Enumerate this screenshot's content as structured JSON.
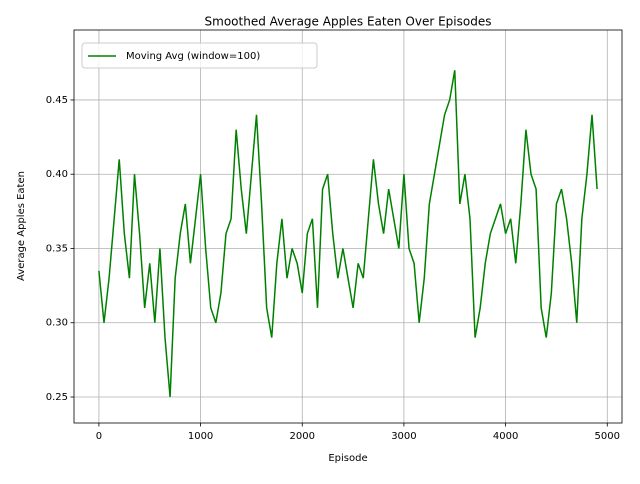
{
  "chart_data": {
    "type": "line",
    "title": "Smoothed Average Apples Eaten Over Episodes",
    "xlabel": "Episode",
    "ylabel": "Average Apples Eaten",
    "x": [
      0,
      50,
      100,
      150,
      200,
      250,
      300,
      350,
      400,
      450,
      500,
      550,
      600,
      650,
      700,
      750,
      800,
      850,
      900,
      950,
      1000,
      1050,
      1100,
      1150,
      1200,
      1250,
      1300,
      1350,
      1400,
      1450,
      1500,
      1550,
      1600,
      1650,
      1700,
      1750,
      1800,
      1850,
      1900,
      1950,
      2000,
      2050,
      2100,
      2150,
      2200,
      2250,
      2300,
      2350,
      2400,
      2450,
      2500,
      2550,
      2600,
      2650,
      2700,
      2750,
      2800,
      2850,
      2900,
      2950,
      3000,
      3050,
      3100,
      3150,
      3200,
      3250,
      3300,
      3350,
      3400,
      3450,
      3500,
      3550,
      3600,
      3650,
      3700,
      3750,
      3800,
      3850,
      3900,
      3950,
      4000,
      4050,
      4100,
      4150,
      4200,
      4250,
      4300,
      4350,
      4400,
      4450,
      4500,
      4550,
      4600,
      4650,
      4700,
      4750,
      4800,
      4850,
      4900
    ],
    "series": [
      {
        "name": "Moving Avg (window=100)",
        "color": "#008000",
        "values": [
          0.335,
          0.3,
          0.33,
          0.37,
          0.41,
          0.36,
          0.33,
          0.4,
          0.36,
          0.31,
          0.34,
          0.3,
          0.35,
          0.29,
          0.25,
          0.33,
          0.36,
          0.38,
          0.34,
          0.37,
          0.4,
          0.35,
          0.31,
          0.3,
          0.32,
          0.36,
          0.37,
          0.43,
          0.39,
          0.36,
          0.4,
          0.44,
          0.38,
          0.31,
          0.29,
          0.34,
          0.37,
          0.33,
          0.35,
          0.34,
          0.32,
          0.36,
          0.37,
          0.31,
          0.39,
          0.4,
          0.36,
          0.33,
          0.35,
          0.33,
          0.31,
          0.34,
          0.33,
          0.37,
          0.41,
          0.38,
          0.36,
          0.39,
          0.37,
          0.35,
          0.4,
          0.35,
          0.34,
          0.3,
          0.33,
          0.38,
          0.4,
          0.42,
          0.44,
          0.45,
          0.47,
          0.38,
          0.4,
          0.37,
          0.29,
          0.31,
          0.34,
          0.36,
          0.37,
          0.38,
          0.36,
          0.37,
          0.34,
          0.38,
          0.43,
          0.4,
          0.39,
          0.31,
          0.29,
          0.32,
          0.38,
          0.39,
          0.37,
          0.34,
          0.3,
          0.37,
          0.4,
          0.44,
          0.39
        ]
      }
    ],
    "xlim": [
      -245,
      5145
    ],
    "xticks": [
      0,
      1000,
      2000,
      3000,
      4000,
      5000
    ],
    "ylim": [
      0.2325,
      0.4971
    ],
    "yticks": [
      0.25,
      {
        "value": 0.3,
        "label": "0.30"
      },
      0.35,
      {
        "value": 0.4,
        "label": "0.40"
      },
      0.45
    ],
    "grid": true,
    "legend": "upper left"
  }
}
